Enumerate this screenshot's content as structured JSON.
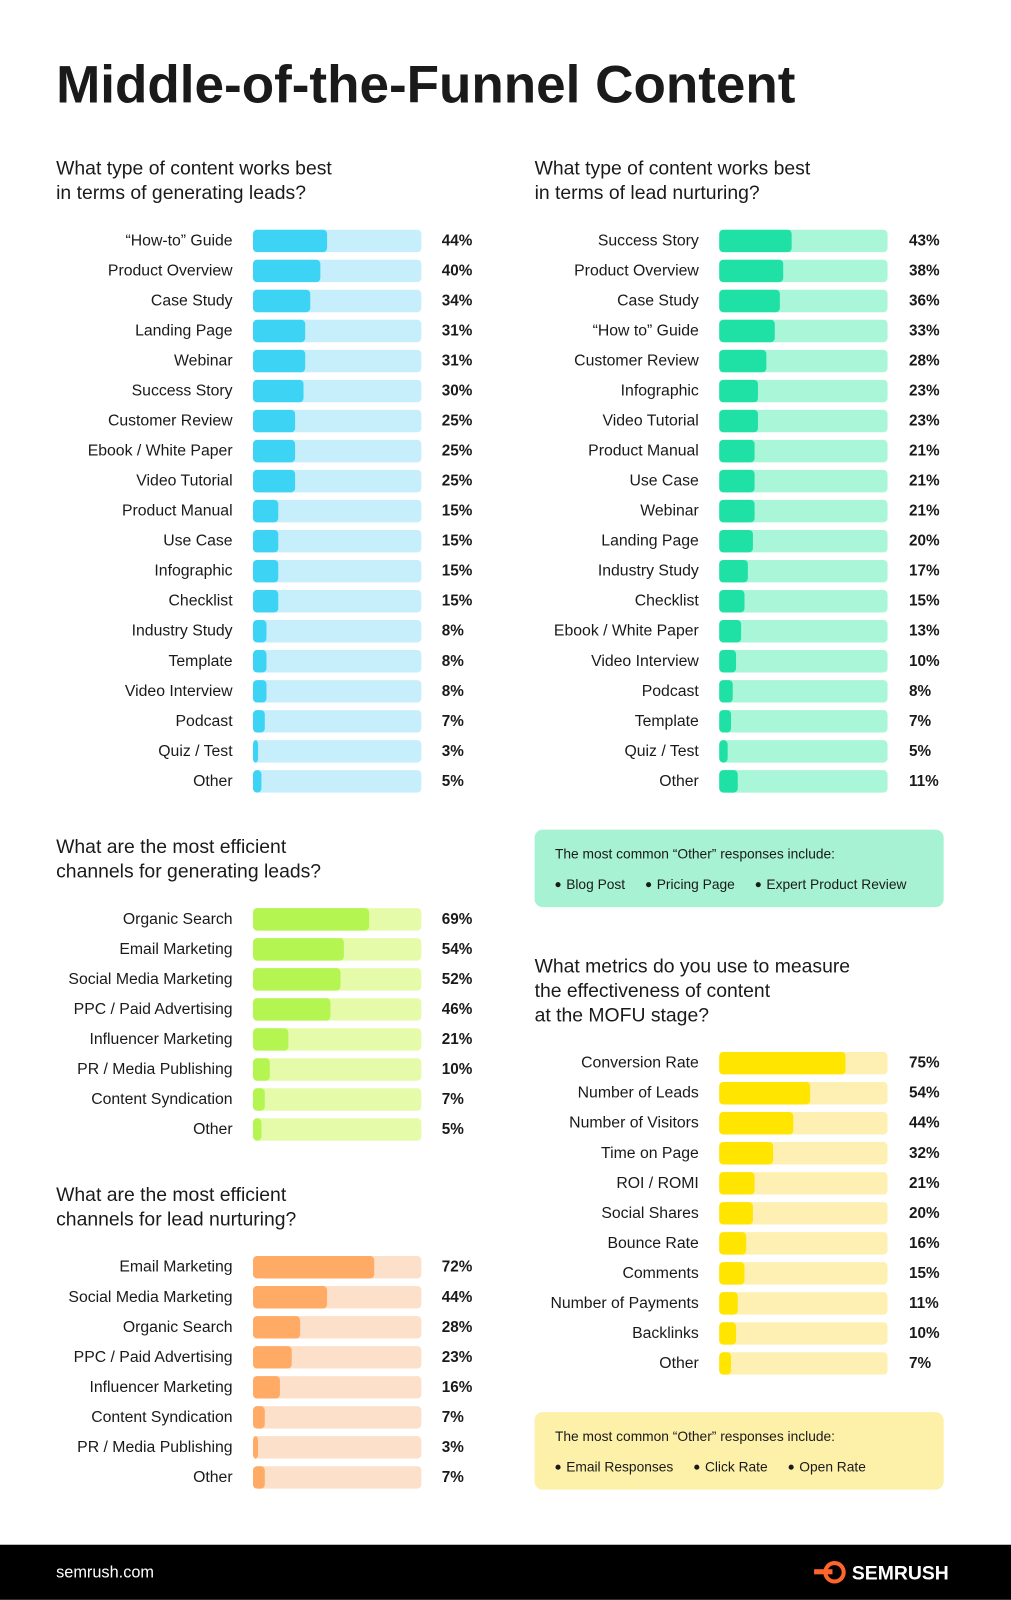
{
  "title": "Middle-of-the-Funnel Content",
  "chart_data": [
    {
      "type": "bar",
      "title": [
        "What type of content works best",
        "in terms of generating leads?"
      ],
      "color": "#3dd3f5",
      "track_color": "#c6eefb",
      "xlim": [
        0,
        100
      ],
      "categories": [
        "“How-to” Guide",
        "Product Overview",
        "Case Study",
        "Landing Page",
        "Webinar",
        "Success Story",
        "Customer Review",
        "Ebook / White Paper",
        "Video Tutorial",
        "Product Manual",
        "Use Case",
        "Infographic",
        "Checklist",
        "Industry Study",
        "Template",
        "Video Interview",
        "Podcast",
        "Quiz / Test",
        "Other"
      ],
      "values": [
        44,
        40,
        34,
        31,
        31,
        30,
        25,
        25,
        25,
        15,
        15,
        15,
        15,
        8,
        8,
        8,
        7,
        3,
        5
      ],
      "value_labels": [
        "44%",
        "40%",
        "34%",
        "31%",
        "31%",
        "30%",
        "25%",
        "25%",
        "25%",
        "15%",
        "15%",
        "15%",
        "15%",
        "8%",
        "8%",
        "8%",
        "7%",
        "3%",
        "5%"
      ]
    },
    {
      "type": "bar",
      "title": [
        "What type of content works best",
        "in terms of lead nurturing?"
      ],
      "color": "#1fe0a5",
      "track_color": "#a9f6d8",
      "xlim": [
        0,
        100
      ],
      "categories": [
        "Success Story",
        "Product Overview",
        "Case Study",
        "“How to” Guide",
        "Customer Review",
        "Infographic",
        "Video Tutorial",
        "Product Manual",
        "Use Case",
        "Webinar",
        "Landing Page",
        "Industry Study",
        "Checklist",
        "Ebook / White Paper",
        "Video Interview",
        "Podcast",
        "Template",
        "Quiz / Test",
        "Other"
      ],
      "values": [
        43,
        38,
        36,
        33,
        28,
        23,
        23,
        21,
        21,
        21,
        20,
        17,
        15,
        13,
        10,
        8,
        7,
        5,
        11
      ],
      "value_labels": [
        "43%",
        "38%",
        "36%",
        "33%",
        "28%",
        "23%",
        "23%",
        "21%",
        "21%",
        "21%",
        "20%",
        "17%",
        "15%",
        "13%",
        "10%",
        "8%",
        "7%",
        "5%",
        "11%"
      ]
    },
    {
      "type": "bar",
      "title": [
        "What are the most efficient",
        "channels for generating leads?"
      ],
      "color": "#b5f552",
      "track_color": "#e6fbaa",
      "xlim": [
        0,
        100
      ],
      "categories": [
        "Organic Search",
        "Email Marketing",
        "Social Media Marketing",
        "PPC / Paid Advertising",
        "Influencer Marketing",
        "PR / Media Publishing",
        "Content Syndication",
        "Other"
      ],
      "values": [
        69,
        54,
        52,
        46,
        21,
        10,
        7,
        5
      ],
      "value_labels": [
        "69%",
        "54%",
        "52%",
        "46%",
        "21%",
        "10%",
        "7%",
        "5%"
      ]
    },
    {
      "type": "bar",
      "title": [
        "What are the most efficient",
        "channels for lead nurturing?"
      ],
      "color": "#ffab66",
      "track_color": "#fde0c9",
      "xlim": [
        0,
        100
      ],
      "categories": [
        "Email Marketing",
        "Social Media Marketing",
        "Organic Search",
        "PPC / Paid Advertising",
        "Influencer Marketing",
        "Content Syndication",
        "PR / Media Publishing",
        "Other"
      ],
      "values": [
        72,
        44,
        28,
        23,
        16,
        7,
        3,
        7
      ],
      "value_labels": [
        "72%",
        "44%",
        "28%",
        "23%",
        "16%",
        "7%",
        "3%",
        "7%"
      ]
    },
    {
      "type": "bar",
      "title": [
        "What metrics do you use to measure",
        "the effectiveness of content",
        "at the MOFU stage?"
      ],
      "color": "#ffe500",
      "track_color": "#fdf0b2",
      "xlim": [
        0,
        100
      ],
      "categories": [
        "Conversion Rate",
        "Number of Leads",
        "Number of Visitors",
        "Time on Page",
        "ROI / ROMI",
        "Social Shares",
        "Bounce Rate",
        "Comments",
        "Number of Payments",
        "Backlinks",
        "Other"
      ],
      "values": [
        75,
        54,
        44,
        32,
        21,
        20,
        16,
        15,
        11,
        10,
        7
      ],
      "value_labels": [
        "75%",
        "54%",
        "44%",
        "32%",
        "21%",
        "20%",
        "16%",
        "15%",
        "11%",
        "10%",
        "7%"
      ]
    }
  ],
  "notes": [
    {
      "heading": "The most common “Other” responses include:",
      "items": [
        "Blog Post",
        "Pricing Page",
        "Expert Product Review"
      ],
      "color": "#a6f2d2"
    },
    {
      "heading": "The most common “Other” responses include:",
      "items": [
        "Email Responses",
        "Click Rate",
        "Open Rate"
      ],
      "color": "#fdf0a8"
    }
  ],
  "footer": {
    "site": "semrush.com",
    "brand": "SEMRUSH"
  }
}
